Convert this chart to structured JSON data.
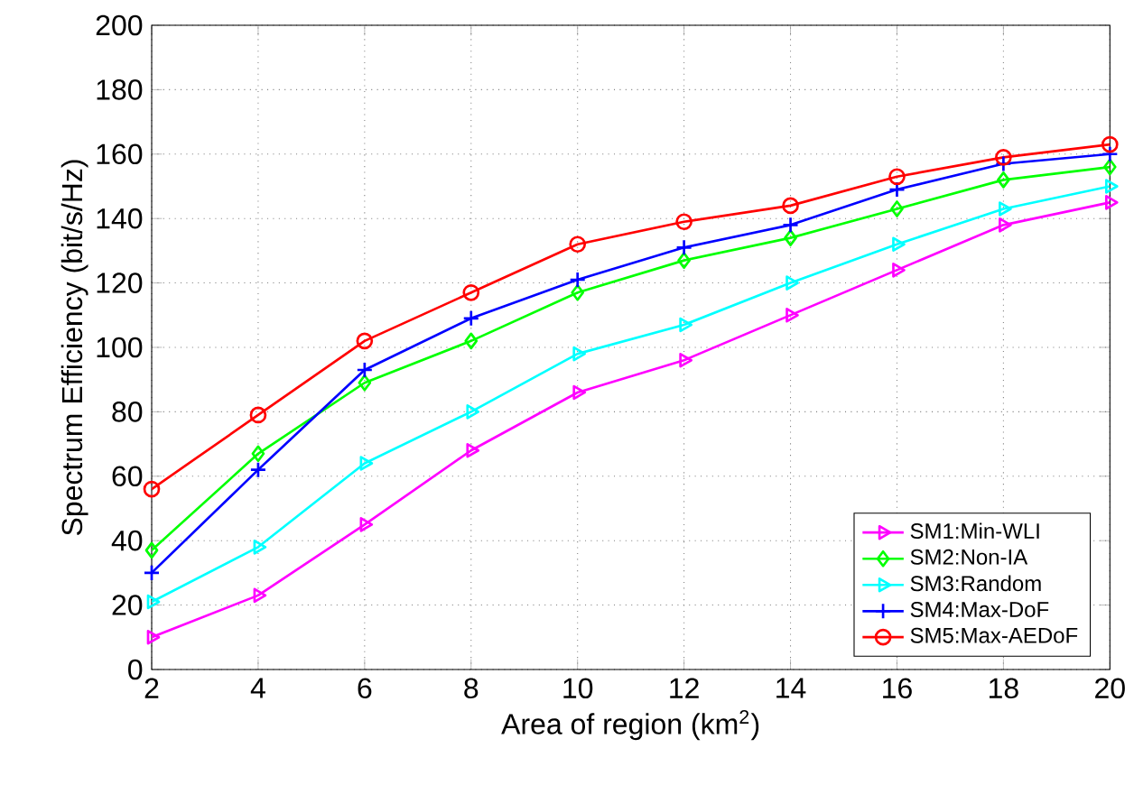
{
  "chart_data": {
    "type": "line",
    "xlabel": "Area of region (km$^{2}$)",
    "ylabel": "Spectrum Efficiency (bit/s/Hz)",
    "x": [
      2,
      4,
      6,
      8,
      10,
      12,
      14,
      16,
      18,
      20
    ],
    "series": [
      {
        "name": "SM1:Min-WLI",
        "color": "#ff00ff",
        "marker": "triangle",
        "values": [
          10,
          23,
          45,
          68,
          86,
          96,
          110,
          124,
          138,
          145
        ]
      },
      {
        "name": "SM2:Non-IA",
        "color": "#00ff00",
        "marker": "diamond",
        "values": [
          37,
          67,
          89,
          102,
          117,
          127,
          134,
          143,
          152,
          156
        ]
      },
      {
        "name": "SM3:Random",
        "color": "#00ffff",
        "marker": "triangle",
        "values": [
          21,
          38,
          64,
          80,
          98,
          107,
          120,
          132,
          143,
          150
        ]
      },
      {
        "name": "SM4:Max-DoF",
        "color": "#0000ff",
        "marker": "cross",
        "values": [
          30,
          62,
          93,
          109,
          121,
          131,
          138,
          149,
          157,
          160
        ]
      },
      {
        "name": "SM5:Max-AEDoF",
        "color": "#ff0000",
        "marker": "circle",
        "values": [
          56,
          79,
          102,
          117,
          132,
          139,
          144,
          153,
          159,
          163
        ]
      }
    ],
    "xlim": [
      2,
      20
    ],
    "ylim": [
      0,
      200
    ],
    "xticks": [
      2,
      4,
      6,
      8,
      10,
      12,
      14,
      16,
      18,
      20
    ],
    "yticks": [
      0,
      20,
      40,
      60,
      80,
      100,
      120,
      140,
      160,
      180,
      200
    ],
    "grid": true,
    "legend": "bottom right",
    "line_style": "solid"
  }
}
